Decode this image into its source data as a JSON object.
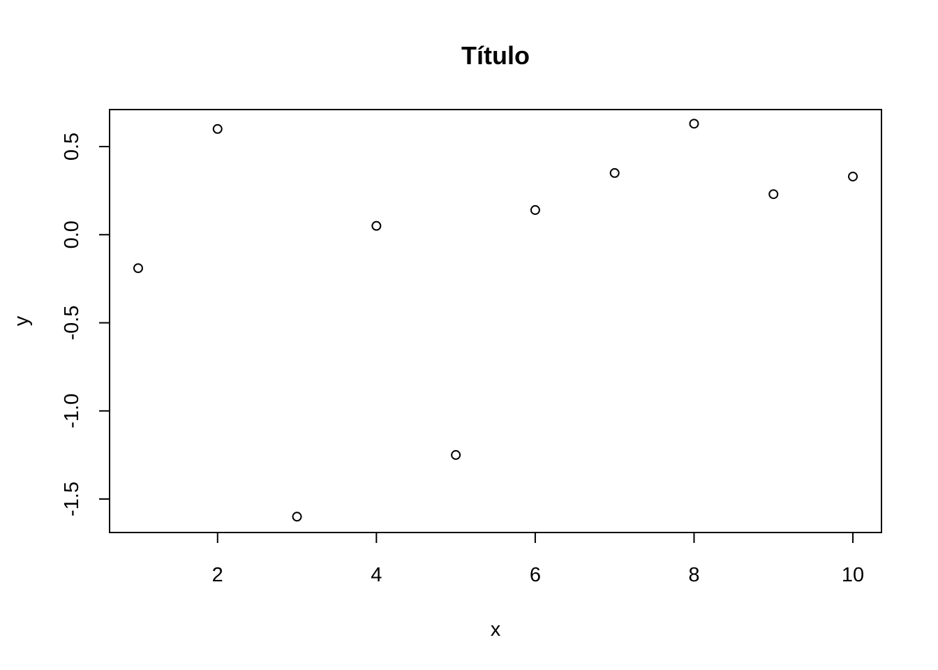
{
  "chart_data": {
    "type": "scatter",
    "title": "Título",
    "xlabel": "x",
    "ylabel": "y",
    "x": [
      1,
      2,
      3,
      4,
      5,
      6,
      7,
      8,
      9,
      10
    ],
    "y": [
      -0.19,
      0.6,
      -1.6,
      0.05,
      -1.25,
      0.14,
      0.35,
      0.63,
      0.23,
      0.33
    ],
    "xlim": [
      0.64,
      10.36
    ],
    "ylim": [
      -1.69,
      0.71
    ],
    "xticks": [
      2,
      4,
      6,
      8,
      10
    ],
    "xtick_labels": [
      "2",
      "4",
      "6",
      "8",
      "10"
    ],
    "yticks": [
      -1.5,
      -1.0,
      -0.5,
      0.0,
      0.5
    ],
    "ytick_labels": [
      "-1.5",
      "-1.0",
      "-0.5",
      "0.0",
      "0.5"
    ],
    "grid": false,
    "legend": "none",
    "marker": "open-circle",
    "colors": {
      "point": "#000000",
      "axis": "#000000",
      "background": "#ffffff"
    }
  }
}
